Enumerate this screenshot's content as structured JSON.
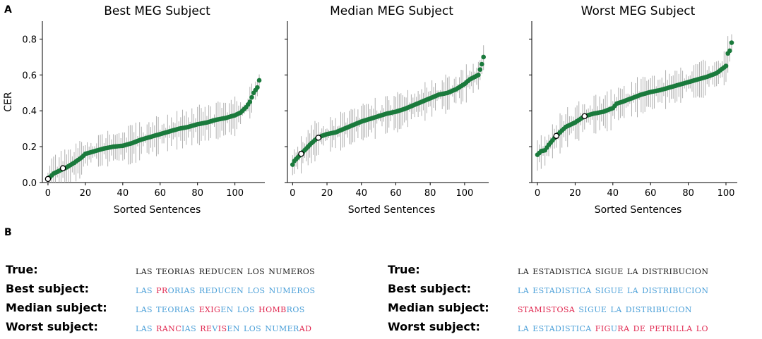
{
  "panel_a_letter": "A",
  "panel_b_letter": "B",
  "colors": {
    "point": "#1a7a3c",
    "errorbar": "#b0b0b0",
    "highlight_fill": "#ffffff",
    "correct": "#4a9fd8",
    "wrong": "#e0274f",
    "true_text": "#1a1a1a"
  },
  "chart_data": [
    {
      "type": "scatter",
      "title": "Best MEG Subject",
      "xlabel": "Sorted Sentences",
      "ylabel": "CER",
      "n": 114,
      "xlim": [
        -3,
        116
      ],
      "ylim": [
        0,
        0.9
      ],
      "xticks": [
        0,
        20,
        40,
        60,
        80,
        100
      ],
      "yticks": [
        0.0,
        0.2,
        0.4,
        0.6,
        0.8
      ],
      "curve_x": [
        0,
        1,
        3,
        6,
        10,
        14,
        18,
        20,
        25,
        30,
        35,
        40,
        45,
        50,
        55,
        60,
        65,
        70,
        75,
        80,
        85,
        90,
        95,
        100,
        103,
        106,
        108,
        110,
        112,
        113
      ],
      "curve_y": [
        0.02,
        0.03,
        0.05,
        0.065,
        0.085,
        0.11,
        0.14,
        0.16,
        0.175,
        0.19,
        0.2,
        0.205,
        0.22,
        0.24,
        0.255,
        0.27,
        0.285,
        0.3,
        0.31,
        0.325,
        0.335,
        0.35,
        0.36,
        0.375,
        0.39,
        0.42,
        0.45,
        0.5,
        0.53,
        0.57
      ],
      "highlight_x": [
        0,
        8
      ],
      "highlight_y": [
        0.02,
        0.08
      ]
    },
    {
      "type": "scatter",
      "title": "Median MEG Subject",
      "xlabel": "Sorted Sentences",
      "ylabel": "",
      "n": 112,
      "xlim": [
        -3,
        114
      ],
      "ylim": [
        0,
        0.9
      ],
      "xticks": [
        0,
        20,
        40,
        60,
        80,
        100
      ],
      "yticks": [
        0.0,
        0.2,
        0.4,
        0.6,
        0.8
      ],
      "curve_x": [
        0,
        1,
        3,
        5,
        8,
        11,
        14,
        17,
        20,
        25,
        30,
        35,
        40,
        45,
        50,
        55,
        60,
        65,
        70,
        75,
        80,
        85,
        90,
        95,
        100,
        103,
        106,
        108,
        110,
        111
      ],
      "curve_y": [
        0.1,
        0.12,
        0.14,
        0.16,
        0.19,
        0.22,
        0.245,
        0.26,
        0.27,
        0.28,
        0.3,
        0.32,
        0.34,
        0.355,
        0.37,
        0.385,
        0.395,
        0.41,
        0.43,
        0.45,
        0.47,
        0.49,
        0.5,
        0.52,
        0.55,
        0.575,
        0.59,
        0.6,
        0.66,
        0.7
      ],
      "highlight_x": [
        5,
        15
      ],
      "highlight_y": [
        0.16,
        0.25
      ]
    },
    {
      "type": "scatter",
      "title": "Worst MEG Subject",
      "xlabel": "Sorted Sentences",
      "ylabel": "",
      "n": 104,
      "xlim": [
        -3,
        106
      ],
      "ylim": [
        0,
        0.9
      ],
      "xticks": [
        0,
        20,
        40,
        60,
        80,
        100
      ],
      "yticks": [
        0.0,
        0.2,
        0.4,
        0.6,
        0.8
      ],
      "curve_x": [
        0,
        2,
        4,
        6,
        8,
        10,
        12,
        15,
        20,
        25,
        30,
        35,
        40,
        42,
        45,
        50,
        55,
        60,
        65,
        70,
        75,
        80,
        85,
        90,
        95,
        100,
        101,
        102,
        103
      ],
      "curve_y": [
        0.155,
        0.175,
        0.18,
        0.21,
        0.235,
        0.26,
        0.28,
        0.31,
        0.335,
        0.37,
        0.385,
        0.395,
        0.415,
        0.44,
        0.45,
        0.47,
        0.49,
        0.505,
        0.515,
        0.53,
        0.545,
        0.56,
        0.575,
        0.59,
        0.61,
        0.65,
        0.72,
        0.735,
        0.78
      ],
      "highlight_x": [
        10,
        25
      ],
      "highlight_y": [
        0.26,
        0.37
      ]
    }
  ],
  "examples": {
    "left": {
      "rows": [
        {
          "label": "True:",
          "segments": [
            [
              "LAS TEORIAS REDUCEN LOS NUMEROS",
              "t"
            ]
          ]
        },
        {
          "label": "Best subject:",
          "segments": [
            [
              "LAS ",
              "c"
            ],
            [
              "PR",
              "w"
            ],
            [
              "ORIAS REDUCEN LOS NUMEROS",
              "c"
            ]
          ]
        },
        {
          "label": "Median subject:",
          "segments": [
            [
              "LAS TEORIAS ",
              "c"
            ],
            [
              "EXIG",
              "w"
            ],
            [
              "EN LOS ",
              "c"
            ],
            [
              "HOMB",
              "w"
            ],
            [
              "ROS",
              "c"
            ]
          ]
        },
        {
          "label": "Worst subject:",
          "segments": [
            [
              "LAS ",
              "c"
            ],
            [
              "RANC",
              "w"
            ],
            [
              "IAS ",
              "c"
            ],
            [
              "RE",
              "w"
            ],
            [
              "V",
              "c"
            ],
            [
              "IS",
              "w"
            ],
            [
              "EN LOS NUMER",
              "c"
            ],
            [
              "AD",
              "w"
            ]
          ]
        }
      ]
    },
    "right": {
      "rows": [
        {
          "label": "True:",
          "segments": [
            [
              "LA ESTADISTICA SIGUE LA DISTRIBUCION",
              "t"
            ]
          ]
        },
        {
          "label": "Best subject:",
          "segments": [
            [
              "LA ESTADISTICA SIGUE LA DISTRIBUCION",
              "c"
            ]
          ]
        },
        {
          "label": "Median subject:",
          "segments": [
            [
              "STAMISTOSA",
              "w"
            ],
            [
              " SIGUE LA DISTRIBUCION",
              "c"
            ]
          ]
        },
        {
          "label": "Worst subject:",
          "segments": [
            [
              "LA ESTADISTICA ",
              "c"
            ],
            [
              "FIG",
              "w"
            ],
            [
              "U",
              "c"
            ],
            [
              "RA DE PETRILLA LO",
              "w"
            ]
          ]
        }
      ]
    }
  }
}
